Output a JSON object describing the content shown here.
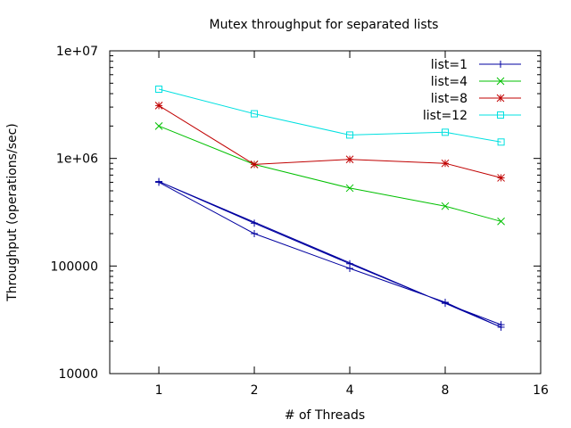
{
  "chart_data": {
    "type": "line",
    "title": "Mutex throughput for separated lists",
    "xlabel": "# of Threads",
    "ylabel": "Throughput (operations/sec)",
    "x_scale": "log2",
    "y_scale": "log10",
    "xlim": [
      0.7,
      16
    ],
    "ylim": [
      10000,
      10000000
    ],
    "x_ticks": [
      1,
      2,
      4,
      8,
      16
    ],
    "x_tick_labels": [
      "1",
      "2",
      "4",
      "8",
      "16"
    ],
    "y_ticks": [
      10000,
      100000,
      1000000,
      10000000
    ],
    "y_tick_labels": [
      "10000",
      "100000",
      "1e+06",
      "1e+07"
    ],
    "legend_position": "top-right",
    "series": [
      {
        "name": "list=1",
        "color": "#0000a0",
        "marker": "plus",
        "x": [
          1,
          2,
          4,
          8,
          12,
          1,
          2,
          4,
          8,
          12
        ],
        "y": [
          600000,
          200000,
          95000,
          46000,
          27000,
          610000,
          250000,
          105000,
          45000,
          28500
        ]
      },
      {
        "name": "list=4",
        "color": "#00c000",
        "marker": "x",
        "x": [
          1,
          2,
          4,
          8,
          12
        ],
        "y": [
          2000000,
          880000,
          530000,
          360000,
          260000
        ]
      },
      {
        "name": "list=8",
        "color": "#c00000",
        "marker": "star",
        "x": [
          1,
          2,
          4,
          8,
          12
        ],
        "y": [
          3100000,
          880000,
          980000,
          900000,
          660000
        ]
      },
      {
        "name": "list=12",
        "color": "#00e0e0",
        "marker": "square",
        "x": [
          1,
          2,
          4,
          8,
          12
        ],
        "y": [
          4400000,
          2600000,
          1650000,
          1750000,
          1420000
        ]
      }
    ]
  }
}
